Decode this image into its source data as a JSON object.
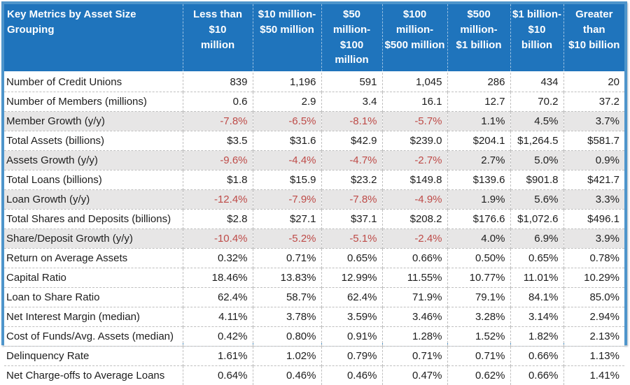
{
  "colors": {
    "header_bg": "#1F74BC",
    "header_text": "#FFFFFF",
    "outer_border": "#4E95CB",
    "shaded_row_bg": "#E7E6E6",
    "negative_value": "#BE4B48",
    "grid_dash": "#BFBFBF",
    "body_text": "#1D1D1D"
  },
  "chart_data": {
    "type": "table",
    "title": "Key Metrics by Asset Size Grouping",
    "columns": [
      {
        "line1": "Less than $10",
        "line2": "million"
      },
      {
        "line1": "$10 million-",
        "line2": "$50 million"
      },
      {
        "line1": "$50 million-",
        "line2": "$100 million"
      },
      {
        "line1": "$100 million-",
        "line2": "$500 million"
      },
      {
        "line1": "$500 million-",
        "line2": "$1 billion"
      },
      {
        "line1": "$1 billion-",
        "line2": "$10 billion"
      },
      {
        "line1": "Greater than",
        "line2": "$10 billion"
      }
    ],
    "rows": [
      {
        "label": "Number of Credit Unions",
        "shaded": false,
        "values": [
          "839",
          "1,196",
          "591",
          "1,045",
          "286",
          "434",
          "20"
        ]
      },
      {
        "label": "Number of Members (millions)",
        "shaded": false,
        "values": [
          "0.6",
          "2.9",
          "3.4",
          "16.1",
          "12.7",
          "70.2",
          "37.2"
        ]
      },
      {
        "label": "Member Growth (y/y)",
        "shaded": true,
        "values": [
          "-7.8%",
          "-6.5%",
          "-8.1%",
          "-5.7%",
          "1.1%",
          "4.5%",
          "3.7%"
        ]
      },
      {
        "label": "Total Assets (billions)",
        "shaded": false,
        "values": [
          "$3.5",
          "$31.6",
          "$42.9",
          "$239.0",
          "$204.1",
          "$1,264.5",
          "$581.7"
        ]
      },
      {
        "label": "Assets Growth (y/y)",
        "shaded": true,
        "values": [
          "-9.6%",
          "-4.4%",
          "-4.7%",
          "-2.7%",
          "2.7%",
          "5.0%",
          "0.9%"
        ]
      },
      {
        "label": "Total Loans (billions)",
        "shaded": false,
        "values": [
          "$1.8",
          "$15.9",
          "$23.2",
          "$149.8",
          "$139.6",
          "$901.8",
          "$421.7"
        ]
      },
      {
        "label": "Loan Growth (y/y)",
        "shaded": true,
        "values": [
          "-12.4%",
          "-7.9%",
          "-7.8%",
          "-4.9%",
          "1.9%",
          "5.6%",
          "3.3%"
        ]
      },
      {
        "label": "Total Shares and Deposits (billions)",
        "shaded": false,
        "values": [
          "$2.8",
          "$27.1",
          "$37.1",
          "$208.2",
          "$176.6",
          "$1,072.6",
          "$496.1"
        ]
      },
      {
        "label": "Share/Deposit Growth (y/y)",
        "shaded": true,
        "values": [
          "-10.4%",
          "-5.2%",
          "-5.1%",
          "-2.4%",
          "4.0%",
          "6.9%",
          "3.9%"
        ]
      },
      {
        "label": "Return on Average Assets",
        "shaded": false,
        "values": [
          "0.32%",
          "0.71%",
          "0.65%",
          "0.66%",
          "0.50%",
          "0.65%",
          "0.78%"
        ]
      },
      {
        "label": "Capital Ratio",
        "shaded": false,
        "values": [
          "18.46%",
          "13.83%",
          "12.99%",
          "11.55%",
          "10.77%",
          "11.01%",
          "10.29%"
        ]
      },
      {
        "label": "Loan to Share Ratio",
        "shaded": false,
        "values": [
          "62.4%",
          "58.7%",
          "62.4%",
          "71.9%",
          "79.1%",
          "84.1%",
          "85.0%"
        ]
      },
      {
        "label": "Net Interest Margin (median)",
        "shaded": false,
        "values": [
          "4.11%",
          "3.78%",
          "3.59%",
          "3.46%",
          "3.28%",
          "3.14%",
          "2.94%"
        ]
      },
      {
        "label": "Cost of Funds/Avg. Assets (median)",
        "shaded": false,
        "values": [
          "0.42%",
          "0.80%",
          "0.91%",
          "1.28%",
          "1.52%",
          "1.82%",
          "2.13%"
        ]
      },
      {
        "label": "Delinquency Rate",
        "shaded": false,
        "values": [
          "1.61%",
          "1.02%",
          "0.79%",
          "0.71%",
          "0.71%",
          "0.66%",
          "1.13%"
        ]
      },
      {
        "label": "Net Charge-offs to Average Loans",
        "shaded": false,
        "values": [
          "0.64%",
          "0.46%",
          "0.46%",
          "0.47%",
          "0.62%",
          "0.66%",
          "1.41%"
        ]
      }
    ]
  }
}
